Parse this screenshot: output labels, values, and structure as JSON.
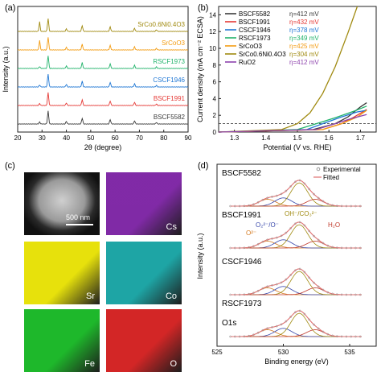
{
  "panel_labels": [
    "(a)",
    "(b)",
    "(c)",
    "(d)"
  ],
  "colors": {
    "BSCF5582": "#3a3a3a",
    "BSCF1991": "#e53935",
    "CSCF1946": "#1f77d4",
    "RSCF1973": "#21b36b",
    "SrCoO3": "#f39c12",
    "SrCo06Ni04O3": "#a08a10",
    "RuO2": "#8e44ad"
  },
  "panel_a": {
    "xlabel": "2θ (degree)",
    "ylabel": "Intensity (a.u.)",
    "xticks": [
      "20",
      "30",
      "40",
      "50",
      "60",
      "70",
      "80",
      "90"
    ],
    "traces": [
      {
        "key": "BSCF5582",
        "label": "BSCF5582"
      },
      {
        "key": "BSCF1991",
        "label": "BSCF1991"
      },
      {
        "key": "CSCF1946",
        "label": "CSCF1946"
      },
      {
        "key": "RSCF1973",
        "label": "RSCF1973"
      },
      {
        "key": "SrCoO3",
        "label": "SrCoO3"
      },
      {
        "key": "SrCo06Ni04O3",
        "label": "SrCo0.6Ni0.4O3"
      }
    ]
  },
  "chart_data": {
    "type": "line",
    "xlabel": "Potential (V vs. RHE)",
    "ylabel": "Current density (mA cm⁻² ECSA)",
    "xlim": [
      1.25,
      1.75
    ],
    "ylim": [
      0,
      15
    ],
    "xticks": [
      "1.3",
      "1.4",
      "1.5",
      "1.6",
      "1.7"
    ],
    "yticks": [
      "0",
      "2",
      "4",
      "6",
      "8",
      "10",
      "12",
      "14"
    ],
    "reference_line_y": 1,
    "series": [
      {
        "name": "BSCF5582",
        "eta": "η=412 mV",
        "key": "BSCF5582",
        "x": [
          1.25,
          1.55,
          1.62,
          1.66,
          1.7,
          1.72
        ],
        "y": [
          0,
          0.3,
          1.0,
          1.8,
          3.0,
          3.5
        ]
      },
      {
        "name": "BSCF1991",
        "eta": "η=432 mV",
        "key": "BSCF1991",
        "x": [
          1.25,
          1.58,
          1.64,
          1.68,
          1.72
        ],
        "y": [
          0,
          0.3,
          1.0,
          1.8,
          2.7
        ]
      },
      {
        "name": "CSCF1946",
        "eta": "η=378 mV",
        "key": "CSCF1946",
        "x": [
          1.25,
          1.53,
          1.58,
          1.64,
          1.69,
          1.72
        ],
        "y": [
          0,
          0.3,
          1.0,
          1.8,
          2.4,
          2.6
        ]
      },
      {
        "name": "RSCF1973",
        "eta": "η=349 mV",
        "key": "RSCF1973",
        "x": [
          1.25,
          1.5,
          1.56,
          1.62,
          1.68,
          1.72
        ],
        "y": [
          0,
          0.3,
          1.0,
          1.7,
          2.5,
          3.1
        ]
      },
      {
        "name": "SrCoO3",
        "eta": "η=425 mV",
        "key": "SrCoO3",
        "x": [
          1.25,
          1.58,
          1.64,
          1.69,
          1.72
        ],
        "y": [
          0,
          0.3,
          1.0,
          1.8,
          2.6
        ]
      },
      {
        "name": "SrCo0.6Ni0.4O3",
        "eta": "η=304 mV",
        "key": "SrCo06Ni04O3",
        "x": [
          1.25,
          1.45,
          1.5,
          1.54,
          1.58,
          1.62,
          1.66,
          1.69
        ],
        "y": [
          0,
          0.3,
          1.0,
          2.3,
          4.6,
          7.8,
          11.8,
          15
        ]
      },
      {
        "name": "RuO2",
        "eta": "η=412 mV",
        "key": "RuO2",
        "x": [
          1.25,
          1.56,
          1.62,
          1.67,
          1.72
        ],
        "y": [
          0,
          0.3,
          1.0,
          1.6,
          2.1
        ]
      }
    ]
  },
  "panel_c": {
    "scale_bar": "500 nm",
    "tiles": [
      {
        "label": "",
        "color": "#8a8a8a",
        "kind": "sem"
      },
      {
        "label": "Cs",
        "color": "#7a1fa2",
        "kind": "map"
      },
      {
        "label": "Sr",
        "color": "#e6e000",
        "kind": "map"
      },
      {
        "label": "Co",
        "color": "#13a1a1",
        "kind": "map"
      },
      {
        "label": "Fe",
        "color": "#12b520",
        "kind": "map"
      },
      {
        "label": "O",
        "color": "#d11b1b",
        "kind": "map"
      }
    ]
  },
  "panel_d": {
    "xlabel": "Binding energy (eV)",
    "ylabel": "Intensity (a.u.)",
    "xticks": [
      "525",
      "530",
      "535"
    ],
    "legend": {
      "experimental": "Experimental",
      "fitted": "Fitted"
    },
    "spectra": [
      {
        "label": "BSCF5582"
      },
      {
        "label": "BSCF1991"
      },
      {
        "label": "CSCF1946"
      },
      {
        "label": "RSCF1973"
      }
    ],
    "core_level": "O1s",
    "annotations": {
      "lattice": "O²⁻",
      "oxo": "O₂²⁻/O⁻",
      "hydroxyl": "OH⁻/CO₃²⁻",
      "water": "H₂O"
    }
  }
}
